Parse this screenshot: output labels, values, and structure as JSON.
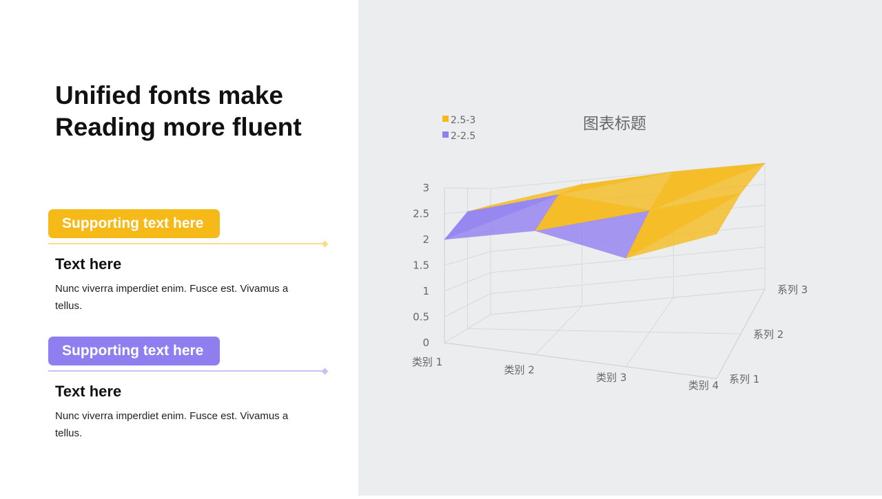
{
  "slide": {
    "title_line1": "Unified fonts make",
    "title_line2": "Reading more fluent"
  },
  "blocks": [
    {
      "pill": "Supporting text here",
      "heading": "Text here",
      "body": "Nunc viverra imperdiet enim. Fusce est. Vivamus a tellus.",
      "color": "#F5BA18",
      "line_color": "#F9DC8A"
    },
    {
      "pill": "Supporting text here",
      "heading": "Text here",
      "body": "Nunc viverra imperdiet enim. Fusce est. Vivamus a tellus.",
      "color": "#8F7EF0",
      "line_color": "#C9C1F6"
    }
  ],
  "chart_data": {
    "type": "surface-3d",
    "title": "图表标题",
    "categories": [
      "类别 1",
      "类别 2",
      "类别 3",
      "类别 4"
    ],
    "series_names": [
      "系列 1",
      "系列 2",
      "系列 3"
    ],
    "series": [
      {
        "name": "系列 1",
        "values": [
          2.0,
          2.4,
          2.1,
          2.8
        ]
      },
      {
        "name": "系列 2",
        "values": [
          2.5,
          2.9,
          2.6,
          3.0
        ]
      },
      {
        "name": "系列 3",
        "values": [
          2.6,
          2.9,
          3.0,
          3.0
        ]
      }
    ],
    "zlim": [
      0,
      3
    ],
    "z_ticks": [
      "0",
      "0.5",
      "1",
      "1.5",
      "2",
      "2.5",
      "3"
    ],
    "legend": [
      {
        "label": "2.5-3",
        "color": "#F5BA18"
      },
      {
        "label": "2-2.5",
        "color": "#8F7EF0"
      }
    ],
    "legend_position": "top-left",
    "grid": true
  }
}
